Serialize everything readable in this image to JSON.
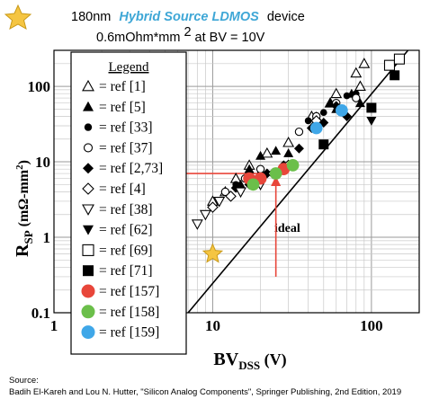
{
  "header": {
    "line1_prefix": "180nm",
    "line1_emph": "Hybrid Source LDMOS",
    "line1_suffix": "device",
    "line2_prefix": "0.6mOhm*mm",
    "line2_sup": "2",
    "line2_suffix": " at BV = 10V",
    "star_color": "#f5c542"
  },
  "source": {
    "label": "Source:",
    "citation": "Badih El-Kareh and Lou N. Hutter, \"Silicon Analog Components\", Springer Publishing, 2nd Edition, 2019"
  },
  "chart_data": {
    "type": "scatter",
    "x_scale": "log",
    "y_scale": "log",
    "xlim": [
      1,
      200
    ],
    "ylim": [
      0.1,
      300
    ],
    "grid": true,
    "xlabel": "BV",
    "xlabel_sub": "DSS",
    "xlabel_unit": " (V)",
    "ylabel": "R",
    "ylabel_sub": "SP",
    "ylabel_unit": " (mΩ-mm",
    "ylabel_sup": "2",
    "ylabel_end": ")",
    "x_ticks": [
      {
        "value": 1,
        "label": "1"
      },
      {
        "value": 10,
        "label": "10"
      },
      {
        "value": 100,
        "label": "100"
      }
    ],
    "y_ticks": [
      {
        "value": 0.1,
        "label": "0.1"
      },
      {
        "value": 1,
        "label": "1"
      },
      {
        "value": 10,
        "label": "10"
      },
      {
        "value": 100,
        "label": "100"
      }
    ],
    "legend": {
      "title": "Legend",
      "position": "left",
      "entries": [
        {
          "label": "= ref [1]",
          "marker": "triangle-up-open",
          "color": "#000000"
        },
        {
          "label": "= ref [5]",
          "marker": "triangle-up",
          "color": "#000000"
        },
        {
          "label": "= ref [33]",
          "marker": "circle-small",
          "color": "#000000"
        },
        {
          "label": "= ref [37]",
          "marker": "circle-open",
          "color": "#000000"
        },
        {
          "label": "= ref [2,73]",
          "marker": "diamond",
          "color": "#000000"
        },
        {
          "label": "= ref [4]",
          "marker": "diamond-open",
          "color": "#000000"
        },
        {
          "label": "= ref [38]",
          "marker": "triangle-down-open",
          "color": "#000000"
        },
        {
          "label": "= ref [62]",
          "marker": "triangle-down",
          "color": "#000000"
        },
        {
          "label": "= ref [69]",
          "marker": "square-open",
          "color": "#000000"
        },
        {
          "label": "= ref [71]",
          "marker": "square",
          "color": "#000000"
        },
        {
          "label": "= ref [157]",
          "marker": "circle-big",
          "color": "#e8463a"
        },
        {
          "label": "= ref [158]",
          "marker": "circle-big",
          "color": "#6bbf4a"
        },
        {
          "label": "= ref [159]",
          "marker": "circle-big",
          "color": "#3fa7e8"
        }
      ]
    },
    "ideal_line": {
      "label": "ideal",
      "points": [
        [
          7,
          0.1
        ],
        [
          170,
          300
        ]
      ]
    },
    "highlight": {
      "marker": "star",
      "color": "#f5c542",
      "x": 10,
      "y": 0.6
    },
    "arrow_color": "#e8463a",
    "arrow": {
      "from": [
        25,
        7
      ],
      "to_x": 1.3,
      "to_y_start": 0.3
    },
    "series": [
      {
        "marker": "triangle-up-open",
        "color": "#000000",
        "points": [
          [
            10,
            3
          ],
          [
            12,
            4
          ],
          [
            14,
            6
          ],
          [
            17,
            9
          ],
          [
            22,
            13
          ],
          [
            30,
            18
          ],
          [
            42,
            40
          ],
          [
            55,
            60
          ],
          [
            80,
            150
          ],
          [
            90,
            200
          ],
          [
            45,
            35
          ],
          [
            60,
            80
          ],
          [
            85,
            100
          ]
        ]
      },
      {
        "marker": "triangle-up",
        "color": "#000000",
        "points": [
          [
            15,
            5
          ],
          [
            17,
            8
          ],
          [
            20,
            12
          ],
          [
            25,
            14
          ],
          [
            30,
            13
          ],
          [
            45,
            40
          ],
          [
            55,
            60
          ],
          [
            75,
            80
          ],
          [
            85,
            60
          ],
          [
            60,
            50
          ]
        ]
      },
      {
        "marker": "circle-small",
        "color": "#000000",
        "points": [
          [
            14,
            5
          ],
          [
            18,
            6
          ],
          [
            20,
            7
          ],
          [
            40,
            35
          ],
          [
            50,
            45
          ],
          [
            70,
            75
          ],
          [
            80,
            80
          ]
        ]
      },
      {
        "marker": "circle-open",
        "color": "#000000",
        "points": [
          [
            12,
            4
          ],
          [
            16,
            6
          ],
          [
            20,
            8
          ],
          [
            35,
            25
          ],
          [
            45,
            40
          ],
          [
            60,
            60
          ],
          [
            80,
            70
          ]
        ]
      },
      {
        "marker": "diamond",
        "color": "#000000",
        "points": [
          [
            14,
            4.5
          ],
          [
            17,
            5
          ],
          [
            22,
            7
          ],
          [
            28,
            9
          ],
          [
            35,
            15
          ],
          [
            42,
            28
          ],
          [
            50,
            33
          ],
          [
            60,
            55
          ],
          [
            70,
            40
          ]
        ]
      },
      {
        "marker": "diamond-open",
        "color": "#000000",
        "points": [
          [
            10,
            2.5
          ],
          [
            13,
            3.5
          ],
          [
            18,
            5
          ],
          [
            24,
            7
          ],
          [
            30,
            9
          ],
          [
            45,
            35
          ]
        ]
      },
      {
        "marker": "triangle-down-open",
        "color": "#000000",
        "points": [
          [
            8,
            1.5
          ],
          [
            9,
            2
          ],
          [
            11,
            3
          ],
          [
            15,
            4
          ],
          [
            20,
            5
          ]
        ]
      },
      {
        "marker": "triangle-down",
        "color": "#000000",
        "points": [
          [
            100,
            35
          ]
        ]
      },
      {
        "marker": "square-open",
        "color": "#000000",
        "points": [
          [
            130,
            190
          ],
          [
            150,
            230
          ]
        ]
      },
      {
        "marker": "square",
        "color": "#000000",
        "points": [
          [
            50,
            17
          ],
          [
            100,
            52
          ],
          [
            140,
            140
          ]
        ]
      },
      {
        "marker": "circle-big",
        "color": "#e8463a",
        "points": [
          [
            17,
            6
          ],
          [
            20,
            6
          ],
          [
            28,
            8
          ]
        ]
      },
      {
        "marker": "circle-big",
        "color": "#6bbf4a",
        "points": [
          [
            18,
            5
          ],
          [
            25,
            7
          ],
          [
            32,
            9
          ]
        ]
      },
      {
        "marker": "circle-big",
        "color": "#3fa7e8",
        "points": [
          [
            45,
            28
          ],
          [
            65,
            48
          ]
        ]
      }
    ]
  }
}
